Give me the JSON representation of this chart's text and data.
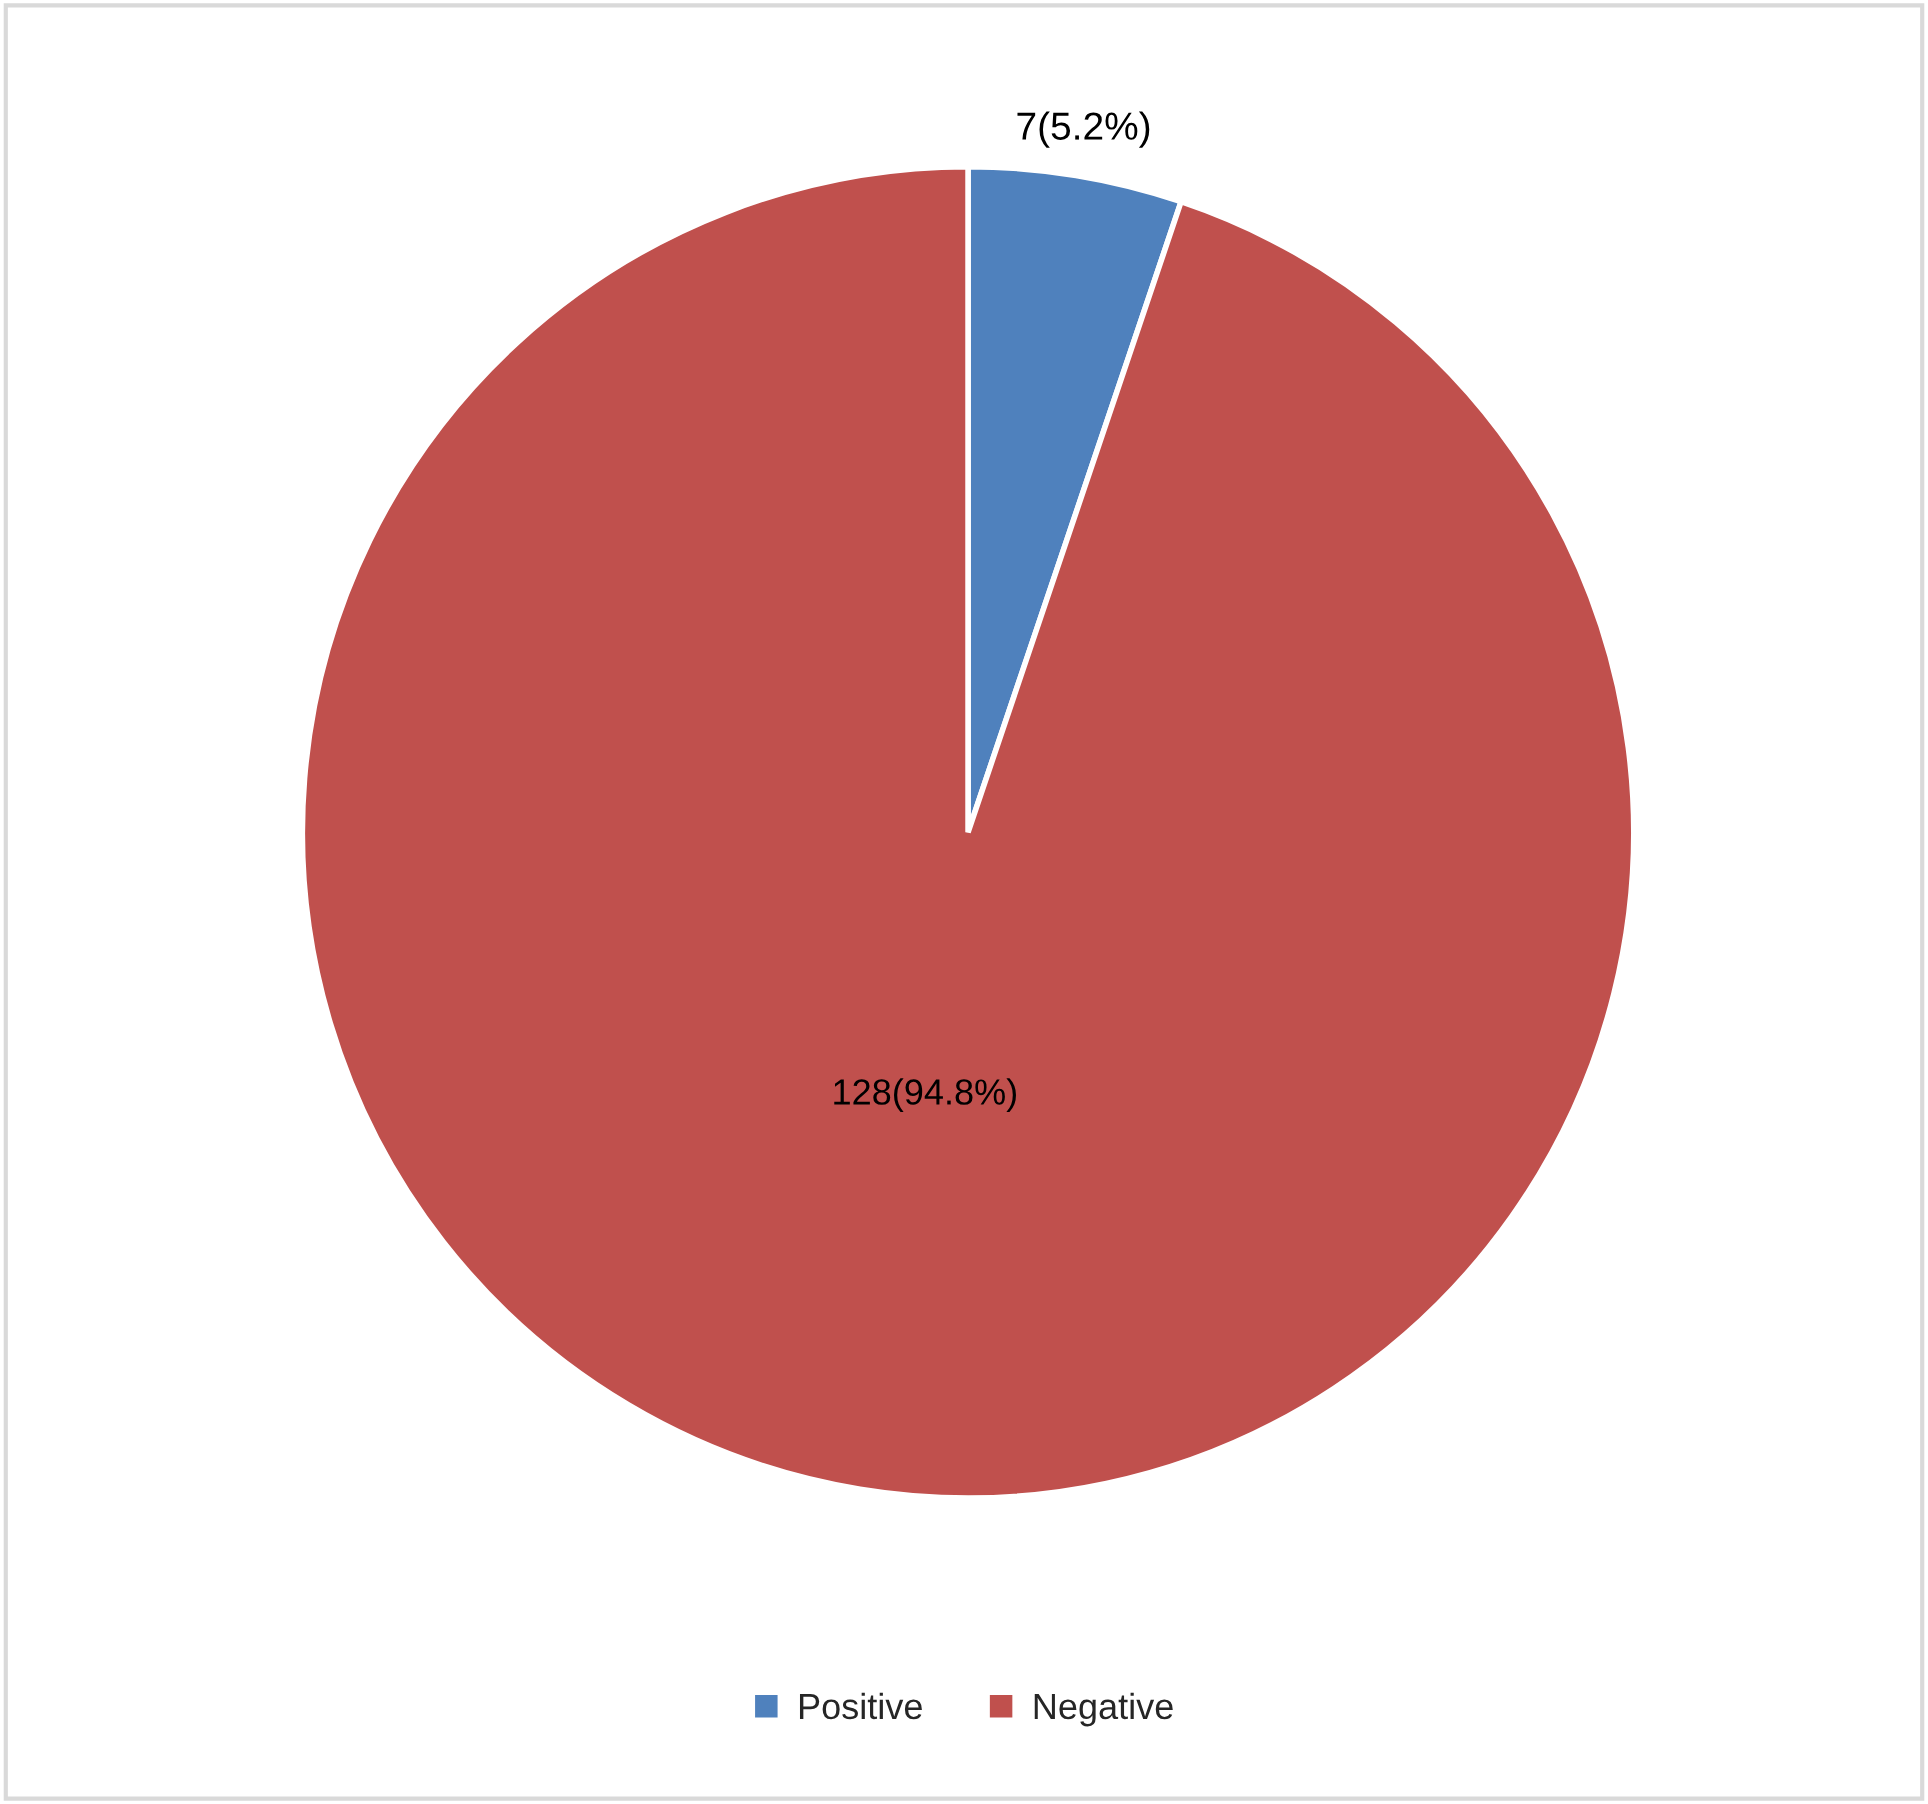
{
  "chart_data": {
    "type": "pie",
    "categories": [
      "Positive",
      "Negative"
    ],
    "values": [
      7,
      128
    ],
    "colors": [
      "#4f81bd",
      "#c0504d"
    ],
    "value_labels": [
      "7(5.2%)",
      "128(94.8%)"
    ],
    "legend": "bottom"
  }
}
